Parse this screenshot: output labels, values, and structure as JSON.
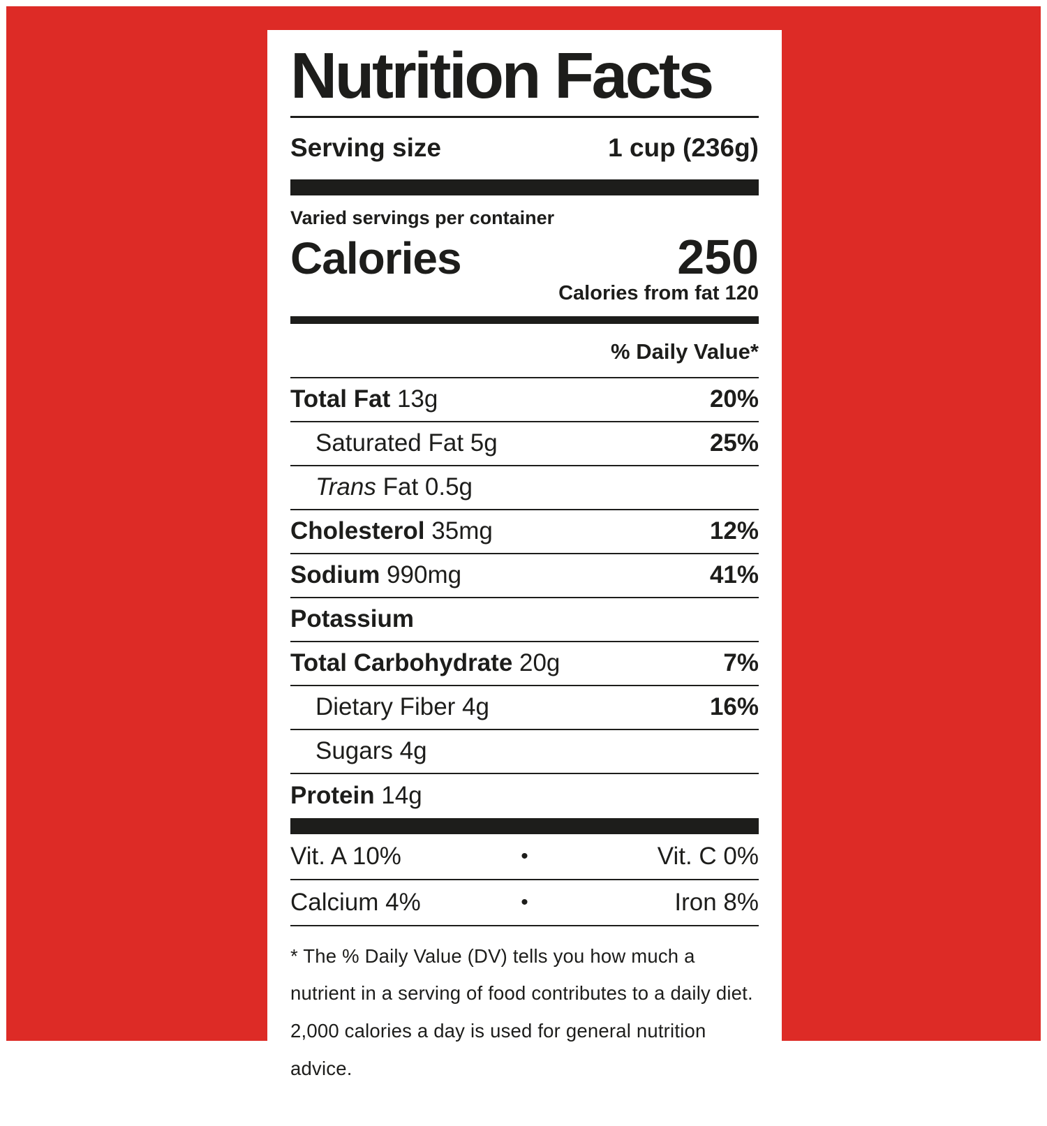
{
  "background": {
    "red_color": "#dd2b26",
    "frame_color": "#ffffff",
    "ink_color": "#1d1d1b"
  },
  "label": {
    "title": "Nutrition Facts",
    "serving": {
      "label": "Serving size",
      "value": "1 cup (236g)"
    },
    "servings_per_container": "Varied servings per container",
    "calories": {
      "label": "Calories",
      "value": "250",
      "from_fat": "Calories from fat 120"
    },
    "daily_value_header": "% Daily Value*",
    "rows": [
      {
        "bold": "Total Fat",
        "italic": "",
        "regular": " 13g",
        "dv": "20%",
        "indent": 0
      },
      {
        "bold": "",
        "italic": "",
        "regular": "Saturated Fat 5g",
        "dv": "25%",
        "indent": 1
      },
      {
        "bold": "",
        "italic": "Trans",
        "regular": " Fat 0.5g",
        "dv": "",
        "indent": 1
      },
      {
        "bold": "Cholesterol",
        "italic": "",
        "regular": " 35mg",
        "dv": "12%",
        "indent": 0
      },
      {
        "bold": "Sodium",
        "italic": "",
        "regular": " 990mg",
        "dv": "41%",
        "indent": 0
      },
      {
        "bold": "Potassium",
        "italic": "",
        "regular": "",
        "dv": "",
        "indent": 0
      },
      {
        "bold": "Total Carbohydrate",
        "italic": "",
        "regular": " 20g",
        "dv": "7%",
        "indent": 0
      },
      {
        "bold": "",
        "italic": "",
        "regular": "Dietary Fiber 4g",
        "dv": "16%",
        "indent": 1
      },
      {
        "bold": "",
        "italic": "",
        "regular": "Sugars 4g",
        "dv": "",
        "indent": 1
      },
      {
        "bold": "Protein",
        "italic": "",
        "regular": " 14g",
        "dv": "",
        "indent": 0
      }
    ],
    "vitamins": [
      {
        "left": "Vit. A 10%",
        "separator": "•",
        "right": "Vit. C 0%"
      },
      {
        "left": "Calcium 4%",
        "separator": "•",
        "right": "Iron 8%"
      }
    ],
    "footnote": "* The % Daily Value (DV) tells you how much a nutrient in a serving of food contributes to a daily diet. 2,000 calories a day is used for general nutrition advice."
  }
}
